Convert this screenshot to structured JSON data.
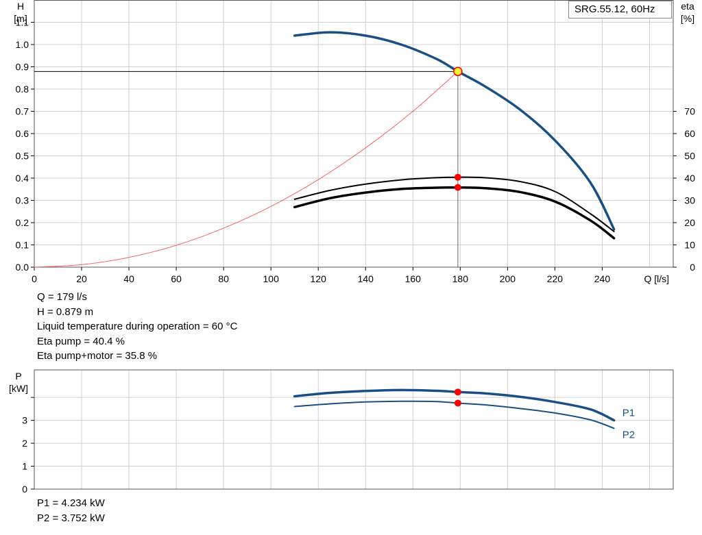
{
  "legend_label": "SRG.55.12, 60Hz",
  "info_top": [
    "Q = 179 l/s",
    "H = 0.879 m",
    "Liquid temperature during operation = 60 °C",
    "Eta pump = 40.4 %",
    "Eta pump+motor = 35.8 %"
  ],
  "info_bottom": [
    "P1 = 4.234 kW",
    "P2 = 3.752 kW"
  ],
  "colors": {
    "pump_curve": "#1a4f86",
    "system_curve": "#ff6060",
    "efficiency_curve": "#000000",
    "marker": "#ff0000",
    "duty_marker_fill": "#ffee33",
    "grid": "#d0d0d0"
  },
  "chart_data": [
    {
      "type": "line",
      "x_axis": {
        "label": "Q [l/s]",
        "range": [
          0,
          270
        ],
        "ticks": [
          0,
          20,
          40,
          60,
          80,
          100,
          120,
          140,
          160,
          180,
          200,
          220,
          240
        ]
      },
      "y_axis_left": {
        "label": "H\n[m]",
        "range": [
          0,
          1.2
        ],
        "ticks": [
          0.0,
          0.1,
          0.2,
          0.3,
          0.4,
          0.5,
          0.6,
          0.7,
          0.8,
          0.9,
          1.0,
          1.1
        ]
      },
      "y_axis_right": {
        "label": "eta\n[%]",
        "range": [
          0,
          120
        ],
        "ticks": [
          0,
          10,
          20,
          30,
          40,
          50,
          60,
          70
        ]
      },
      "grid": true,
      "legend_placement": "top-right",
      "series": [
        {
          "key": "pump_head",
          "axis": "left",
          "x": [
            110,
            125,
            140,
            155,
            170,
            179,
            190,
            205,
            220,
            235,
            245
          ],
          "y": [
            1.04,
            1.055,
            1.04,
            1.0,
            0.935,
            0.879,
            0.815,
            0.71,
            0.57,
            0.38,
            0.17
          ]
        },
        {
          "key": "system_curve",
          "axis": "left",
          "x": [
            0,
            20,
            40,
            60,
            80,
            100,
            120,
            140,
            160,
            179
          ],
          "y": [
            0.0,
            0.011,
            0.044,
            0.098,
            0.175,
            0.273,
            0.393,
            0.536,
            0.7,
            0.879
          ]
        },
        {
          "key": "eta_pump",
          "axis": "right",
          "x": [
            110,
            125,
            140,
            155,
            170,
            179,
            190,
            205,
            220,
            235,
            245
          ],
          "y": [
            30.5,
            34.5,
            37.3,
            39.2,
            40.2,
            40.4,
            40.2,
            38.5,
            34,
            24,
            16
          ]
        },
        {
          "key": "eta_pump_motor",
          "axis": "right",
          "x": [
            110,
            125,
            140,
            155,
            170,
            179,
            190,
            205,
            220,
            235,
            245
          ],
          "y": [
            27,
            31,
            33.5,
            35.1,
            35.7,
            35.8,
            35.5,
            33.8,
            29.5,
            21,
            13
          ]
        }
      ],
      "duty_point": {
        "x": 179,
        "head": 0.879,
        "eta_pump": 40.4,
        "eta_pump_motor": 35.8
      }
    },
    {
      "type": "line",
      "x_axis": {
        "range": [
          0,
          270
        ]
      },
      "y_axis_left": {
        "label": "P\n[kW]",
        "range": [
          0,
          5.2
        ],
        "ticks": [
          0,
          1,
          2,
          3
        ]
      },
      "grid": true,
      "series": [
        {
          "key": "p1",
          "name": "P1",
          "x": [
            110,
            125,
            140,
            155,
            170,
            179,
            190,
            205,
            220,
            235,
            245
          ],
          "y": [
            4.05,
            4.2,
            4.28,
            4.32,
            4.29,
            4.234,
            4.18,
            4.03,
            3.8,
            3.48,
            3.0
          ]
        },
        {
          "key": "p2",
          "name": "P2",
          "x": [
            110,
            125,
            140,
            155,
            170,
            179,
            190,
            205,
            220,
            235,
            245
          ],
          "y": [
            3.6,
            3.72,
            3.8,
            3.83,
            3.82,
            3.752,
            3.68,
            3.52,
            3.32,
            3.02,
            2.65
          ]
        }
      ],
      "duty_point": {
        "x": 179,
        "p1": 4.234,
        "p2": 3.752
      }
    }
  ]
}
